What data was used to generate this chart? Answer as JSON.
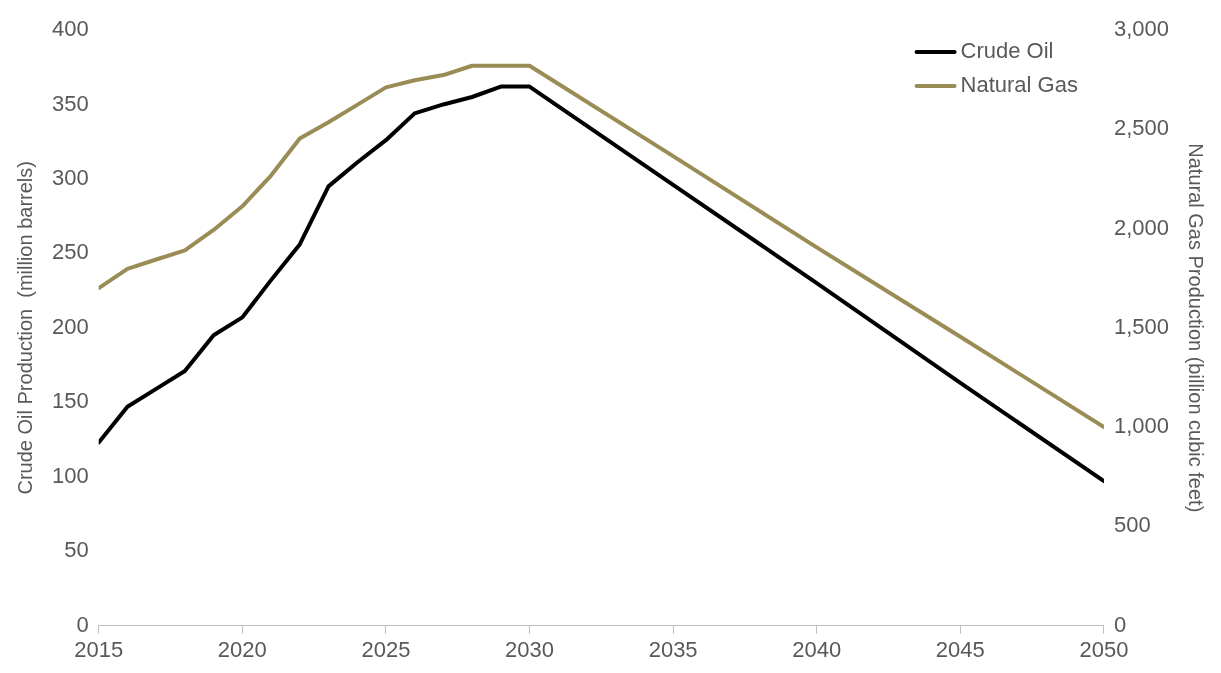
{
  "chart_data": {
    "type": "line",
    "xlim": [
      2015,
      2050
    ],
    "xticks": [
      2015,
      2020,
      2025,
      2030,
      2035,
      2040,
      2045,
      2050
    ],
    "ylabel": "Crude Oil Production  (million barrels)",
    "y2label": "Natural Gas Production (billion cubic feet)",
    "ylim": [
      0,
      400
    ],
    "yticks": [
      0,
      50,
      100,
      150,
      200,
      250,
      300,
      350,
      400
    ],
    "y2lim": [
      0,
      3000
    ],
    "y2ticks": [
      {
        "value": 0,
        "label": "0"
      },
      {
        "value": 500,
        "label": "500"
      },
      {
        "value": 1000,
        "label": "1,000"
      },
      {
        "value": 1500,
        "label": "1,500"
      },
      {
        "value": 2000,
        "label": "2,000"
      },
      {
        "value": 2500,
        "label": "2,500"
      },
      {
        "value": 3000,
        "label": "3,000"
      }
    ],
    "grid": false,
    "legend": "top right",
    "marker": "none",
    "line_style": "solid",
    "series": [
      {
        "name": "Crude Oil",
        "color": "#000000",
        "x": [
          2015,
          2016,
          2017,
          2018,
          2019,
          2020,
          2021,
          2022,
          2023,
          2024,
          2025,
          2026,
          2027,
          2028,
          2029,
          2030,
          2035,
          2040,
          2045,
          2050
        ],
        "values": [
          123,
          147,
          159,
          171,
          195,
          207,
          232,
          256,
          295,
          311,
          326,
          344,
          350,
          355,
          362,
          362,
          296,
          230,
          163,
          97
        ]
      },
      {
        "name": "Natural Gas",
        "color": "#9a8c55",
        "axis": "y2",
        "x": [
          2015,
          2016,
          2017,
          2018,
          2019,
          2020,
          2021,
          2022,
          2023,
          2024,
          2025,
          2026,
          2027,
          2028,
          2029,
          2030,
          2035,
          2040,
          2045,
          2050
        ],
        "values": [
          1700,
          1797,
          1844,
          1890,
          1993,
          2112,
          2267,
          2453,
          2535,
          2623,
          2711,
          2747,
          2773,
          2820,
          2820,
          2820,
          2365,
          1905,
          1455,
          1000
        ]
      }
    ]
  }
}
